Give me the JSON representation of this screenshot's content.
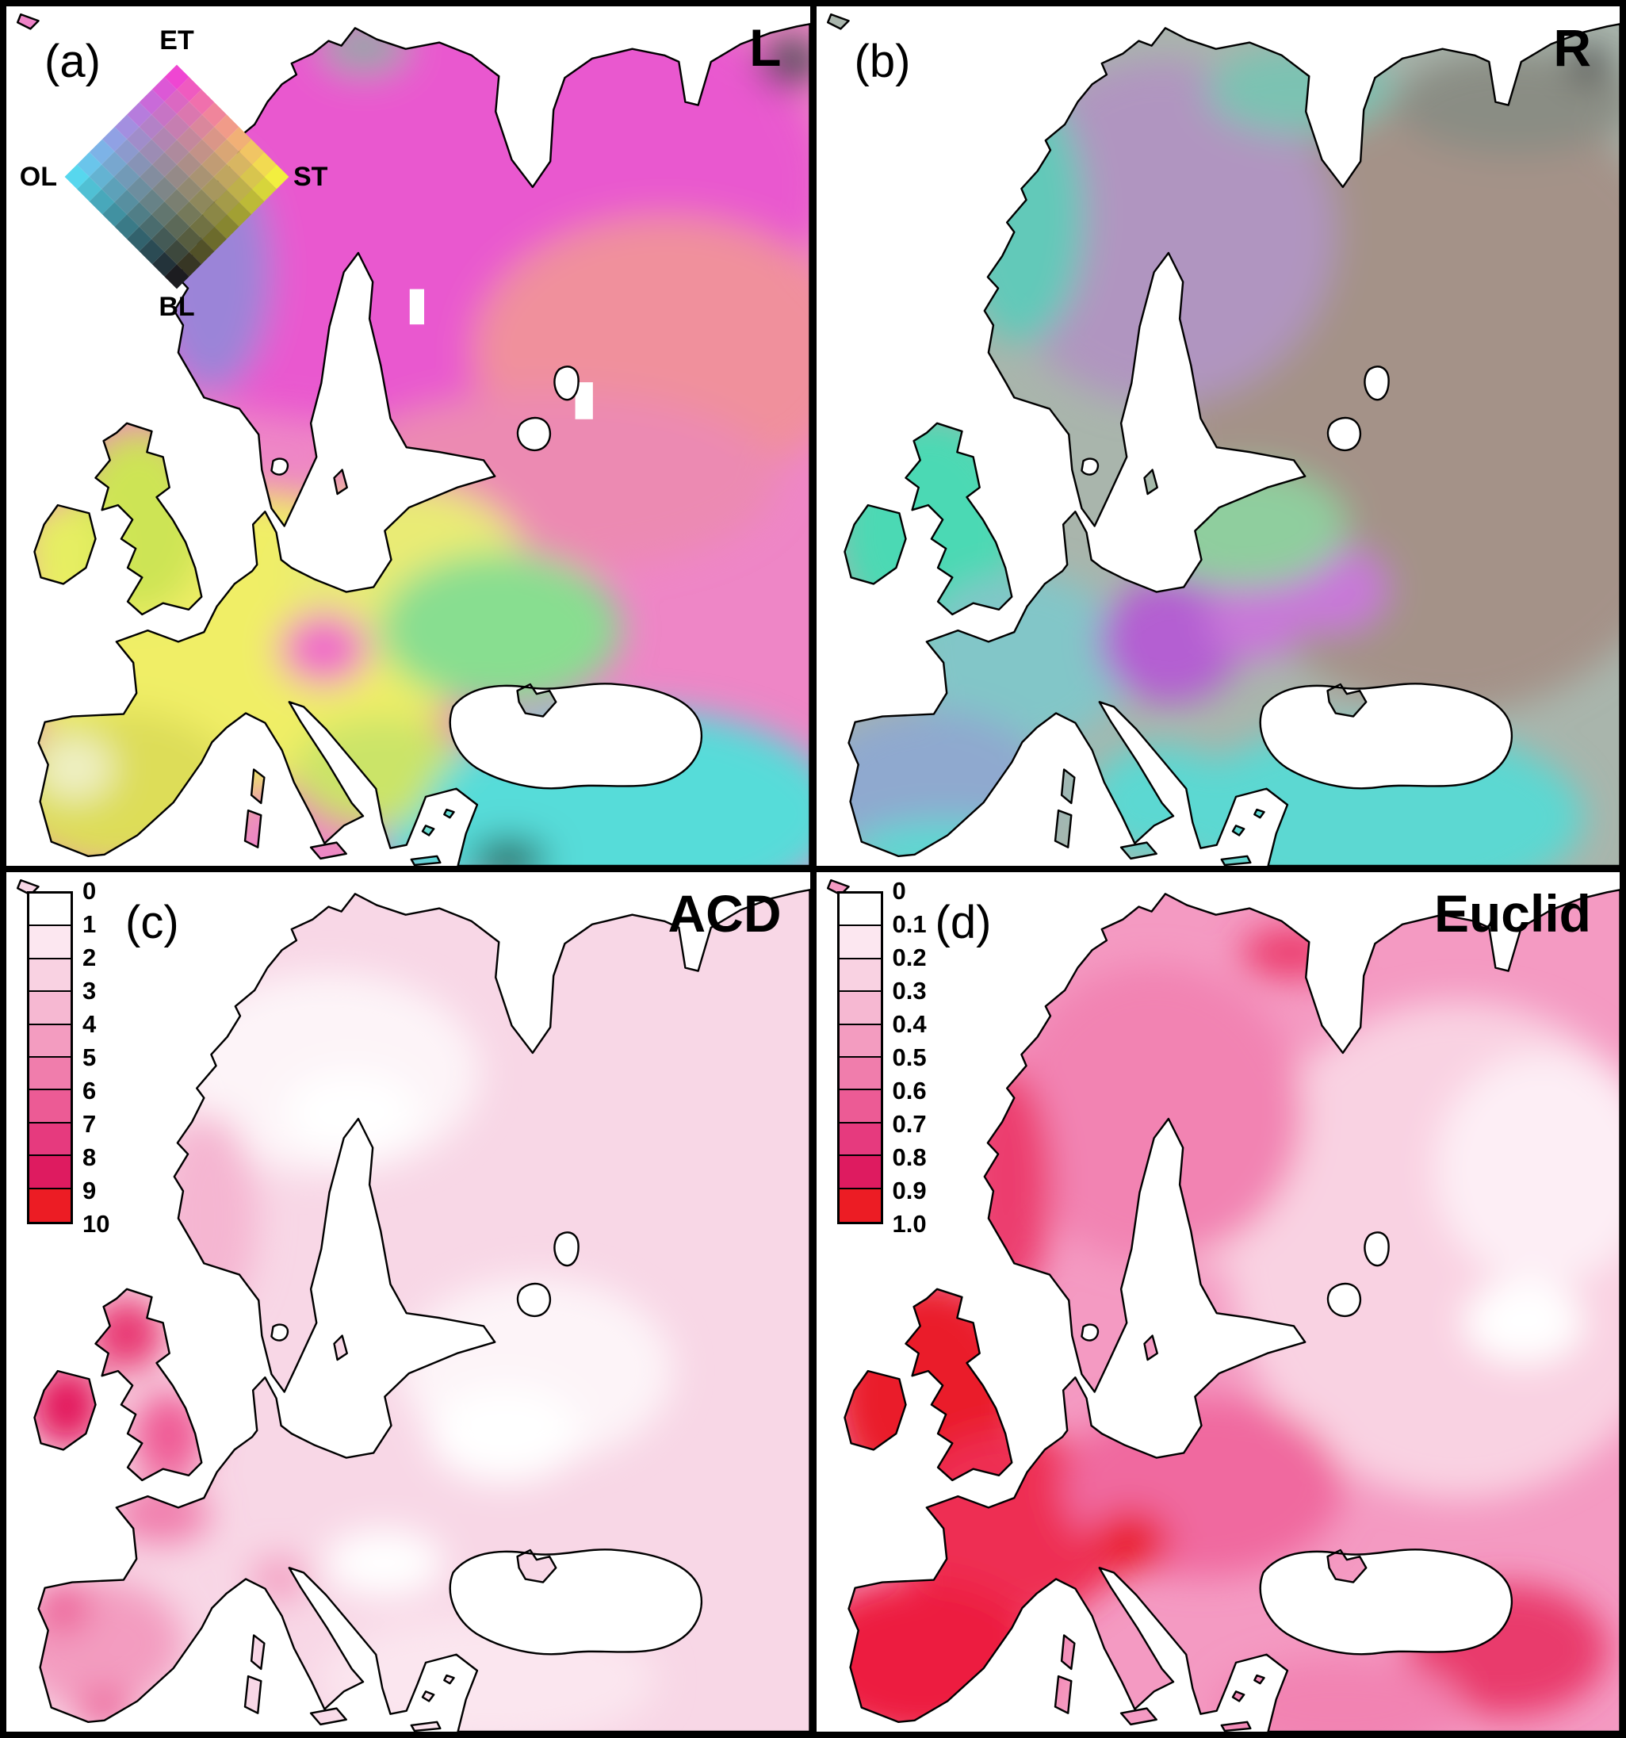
{
  "figure": {
    "panels": {
      "a": {
        "label": "(a)",
        "title": "L"
      },
      "b": {
        "label": "(b)",
        "title": "R"
      },
      "c": {
        "label": "(c)",
        "title": "ACD"
      },
      "d": {
        "label": "(d)",
        "title": "Euclid"
      }
    },
    "diamond_legend": {
      "top_label": "ET",
      "right_label": "ST",
      "bottom_label": "BL",
      "left_label": "OL",
      "grid_steps": 9,
      "corner_colors": {
        "top": "#ef46d2",
        "right": "#f2ef3f",
        "bottom": "#1c1c20",
        "left": "#57d7ee"
      }
    },
    "colorbars": {
      "ramp": [
        "#ffffff",
        "#fce7f0",
        "#f9d2e2",
        "#f6b8d2",
        "#f39cc0",
        "#f07dac",
        "#ec5b95",
        "#e63a7e",
        "#de1b60",
        "#ec1c24"
      ],
      "c": {
        "ticks": [
          "0",
          "1",
          "2",
          "3",
          "4",
          "5",
          "6",
          "7",
          "8",
          "9",
          "10"
        ]
      },
      "d": {
        "ticks": [
          "0",
          "0.1",
          "0.2",
          "0.3",
          "0.4",
          "0.5",
          "0.6",
          "0.7",
          "0.8",
          "0.9",
          "1.0"
        ]
      }
    },
    "map_colors": {
      "a": {
        "base": "#ee86c6",
        "north_magenta": "#e958cf",
        "russia_salmon": "#f0909c",
        "russia_rose": "#ec8ab2",
        "norway_purple": "#9b84d8",
        "north_cape_gray": "#9aa2aa",
        "corner_dark": "#4c4c55",
        "europe_yellow": "#f0ee66",
        "east_yellow": "#e9eb74",
        "balkan_green": "#cbe468",
        "uk_green": "#cde455",
        "ireland_yellow": "#e6ee62",
        "iberia_olive": "#dddd58",
        "iberia_pale": "#eff0c6",
        "green_band": "#88de90",
        "cyan_south": "#57dcd9",
        "alps_pink": "#f06cc8",
        "dark_spot_south": "#2e6b62"
      },
      "b": {
        "base": "#a9b5ac",
        "east_taupe": "#a49288",
        "scand_mauve": "#b095c0",
        "norway_teal": "#62c9b9",
        "kola_teal": "#7cc2b2",
        "isles_turquoise": "#4cd9b4",
        "france_teal": "#82c6c8",
        "iberia_steel": "#8fa9cf",
        "south_cyan": "#5cd8d2",
        "central_purple": "#b45fd2",
        "central_magenta": "#c878d8",
        "balkan_green": "#8fce9e",
        "corner_gray": "#8a8d84",
        "black_spot": "#3a3a40"
      },
      "c": {
        "base": "#f8d7e6",
        "pale": "#fdf4f8",
        "white_patch": "#ffffff",
        "norway_pink": "#f5b6d1",
        "scotland_red": "#e8356f",
        "ireland_red": "#e3195c",
        "england_pink": "#ef5b95",
        "brittany_pink": "#f07dac",
        "iberia_pink": "#f39cc0",
        "iberia_spot": "#ec5b95",
        "alps_spot": "#f39cc0",
        "south_pale": "#fbe6ef"
      },
      "d": {
        "base": "#f49ac2",
        "east_pale": "#f9d2e2",
        "far_pale": "#fdeef5",
        "white_patch": "#ffffff",
        "scand_mid": "#f283b2",
        "isles_red": "#ea1c2c",
        "france_red": "#ee2d52",
        "iberia_red": "#ed1c40",
        "norway_red": "#ec3d6e",
        "central_rose": "#f0699f",
        "southeast_red": "#e93a6c",
        "turkey_pink": "#f283b2"
      }
    }
  }
}
